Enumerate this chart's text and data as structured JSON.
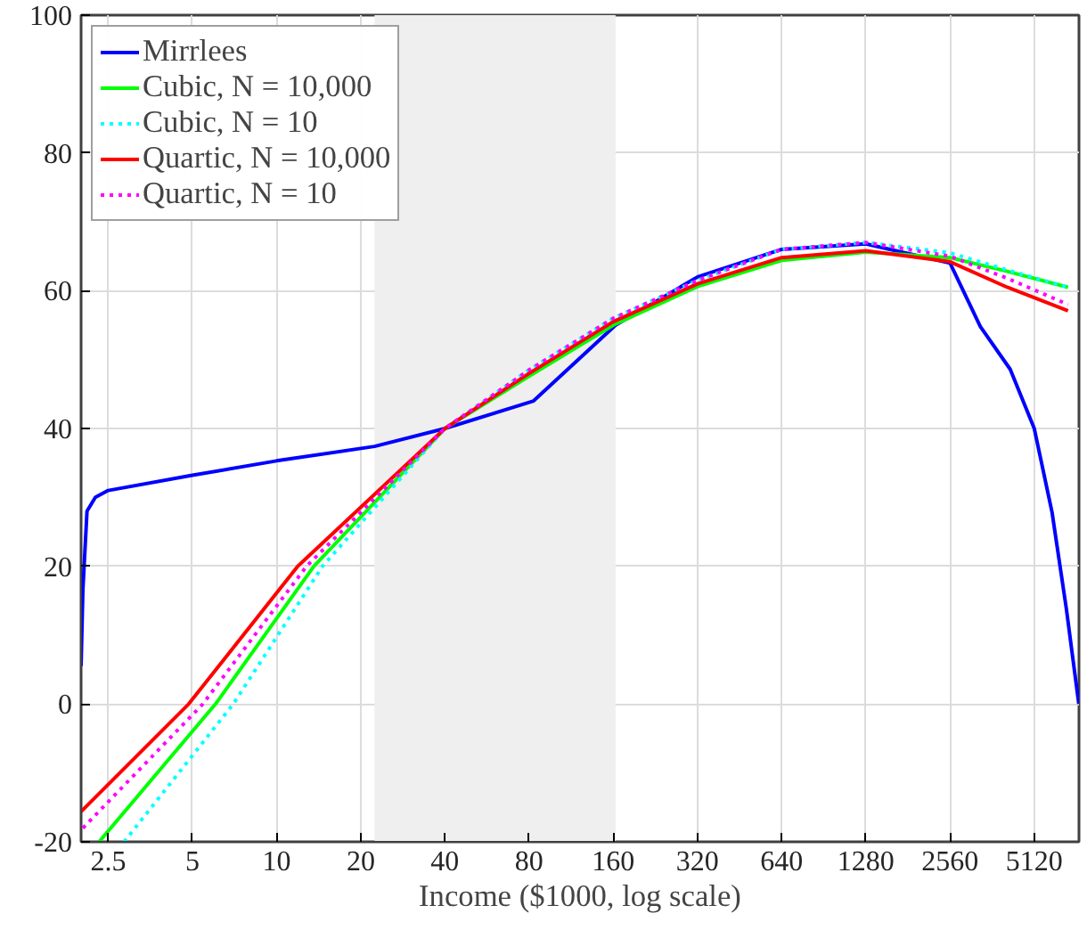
{
  "chart_data": {
    "type": "line",
    "xlabel": "Income ($1000, log scale)",
    "log": "x",
    "grid": true,
    "legend": "top left",
    "xlim": [
      2,
      7400
    ],
    "ylim": [
      -20,
      100
    ],
    "xticks": [
      2.5,
      5,
      10,
      20,
      40,
      80,
      160,
      320,
      640,
      1280,
      2560,
      5120
    ],
    "yticks": [
      -20,
      0,
      20,
      40,
      60,
      80,
      100
    ],
    "bands": [
      {
        "axis": "x",
        "from": 22.4,
        "to": 163,
        "color": "#efefef"
      }
    ],
    "series": [
      {
        "name": "Mirrlees",
        "color": "#0000ff",
        "line_style": "solid",
        "x": [
          2.0,
          2.03,
          2.1,
          2.25,
          2.5,
          5,
          10,
          22.4,
          40,
          83,
          163,
          320,
          640,
          1280,
          2560,
          3285,
          4200,
          5120,
          5930,
          6660,
          7390
        ],
        "values": [
          5.5,
          16.6,
          28,
          30,
          31,
          33.2,
          35.3,
          37.4,
          40,
          44,
          55,
          62,
          66,
          66.8,
          64,
          54.8,
          48.6,
          40,
          27.8,
          14,
          0
        ]
      },
      {
        "name": "Cubic, N = 10,000",
        "color": "#00ff00",
        "line_style": "solid",
        "x": [
          2.32,
          6.05,
          13.6,
          40,
          80,
          160,
          320,
          640,
          1280,
          2560,
          4100,
          6760
        ],
        "values": [
          -20,
          0,
          20,
          40,
          47.6,
          55,
          60.6,
          64.4,
          65.6,
          64.8,
          62.8,
          60.5
        ]
      },
      {
        "name": "Cubic, N = 10",
        "color": "#00ffff",
        "line_style": "dotted",
        "x": [
          2.85,
          7.0,
          14.6,
          40,
          80,
          160,
          320,
          640,
          1280,
          2560,
          4100,
          6760
        ],
        "values": [
          -20,
          0,
          20,
          40,
          48.5,
          56,
          61.5,
          66,
          67,
          65.5,
          63,
          60.5
        ]
      },
      {
        "name": "Quartic, N = 10,000",
        "color": "#ff0000",
        "line_style": "solid",
        "x": [
          2.0,
          4.85,
          11.9,
          40,
          80,
          160,
          320,
          640,
          1280,
          2560,
          4100,
          6760
        ],
        "values": [
          -15.6,
          0,
          20,
          40,
          48,
          55.5,
          61,
          64.8,
          65.8,
          64.2,
          60.5,
          57.1
        ]
      },
      {
        "name": "Quartic, N = 10",
        "color": "#ff00ff",
        "line_style": "dotted",
        "x": [
          2.03,
          5.45,
          12.8,
          40,
          80,
          160,
          320,
          640,
          1280,
          2560,
          4100,
          6760
        ],
        "values": [
          -18,
          0,
          20,
          40,
          48.5,
          56,
          61.5,
          66,
          67,
          65,
          61.8,
          58
        ]
      }
    ]
  }
}
